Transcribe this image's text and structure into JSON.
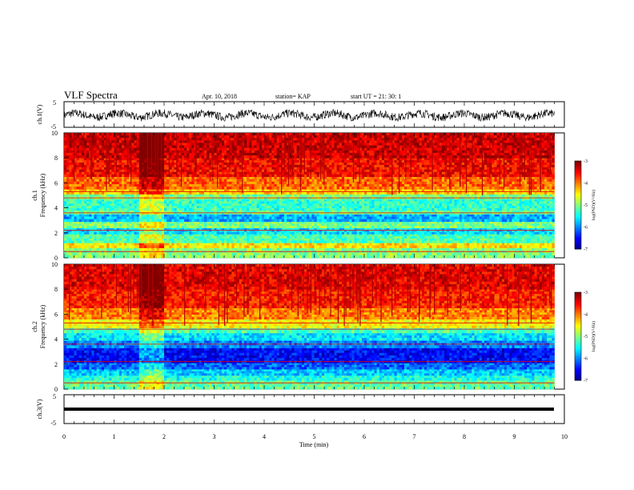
{
  "header": {
    "title": "VLF Spectra",
    "date": "Apr. 10, 2018",
    "station": "station= KAP",
    "start": "start  UT =   21: 30: 1"
  },
  "chart_data": [
    {
      "type": "line",
      "panel": "ch1-waveform",
      "ylabel": "ch.1(V)",
      "ylim": [
        -5,
        5
      ],
      "yticks": [
        "5",
        "-5"
      ],
      "xlim": [
        0,
        10
      ],
      "description_values": {
        "mean": -0.3,
        "range": [
          -2.5,
          1.5
        ]
      }
    },
    {
      "type": "heatmap",
      "panel": "ch1-spectrogram",
      "ylabel": "ch.1\nFrequency (kHz)",
      "ylim": [
        0,
        10
      ],
      "yticks": [
        "0",
        "2",
        "4",
        "6",
        "8",
        "10"
      ],
      "xlim": [
        0,
        9.8
      ],
      "colorbar": {
        "label": "log(PSD)(V²/Hz)",
        "range": [
          -7,
          -3
        ],
        "ticks": [
          "-3",
          "-4",
          "-5",
          "-6",
          "-7"
        ]
      },
      "bands": [
        {
          "from": 0.0,
          "to": 0.8,
          "value": -5.0
        },
        {
          "from": 0.8,
          "to": 1.2,
          "value": -4.4
        },
        {
          "from": 1.2,
          "to": 1.9,
          "value": -5.2
        },
        {
          "from": 1.9,
          "to": 2.4,
          "value": -5.6
        },
        {
          "from": 2.4,
          "to": 2.9,
          "value": -5.0
        },
        {
          "from": 2.9,
          "to": 3.5,
          "value": -5.8
        },
        {
          "from": 3.5,
          "to": 3.8,
          "value": -5.1
        },
        {
          "from": 3.8,
          "to": 4.7,
          "value": -5.3
        },
        {
          "from": 4.7,
          "to": 5.1,
          "value": -5.0
        },
        {
          "from": 5.1,
          "to": 5.5,
          "value": -4.3
        },
        {
          "from": 5.5,
          "to": 6.5,
          "value": -3.9
        },
        {
          "from": 6.5,
          "to": 8.0,
          "value": -3.5
        },
        {
          "from": 8.0,
          "to": 10.0,
          "value": -3.3
        }
      ],
      "event": {
        "t_start": 1.5,
        "t_end": 2.0
      }
    },
    {
      "type": "heatmap",
      "panel": "ch2-spectrogram",
      "ylabel": "ch.2\nFrequency (kHz)",
      "ylim": [
        0,
        10
      ],
      "yticks": [
        "0",
        "2",
        "4",
        "6",
        "8",
        "10"
      ],
      "xlim": [
        0,
        9.8
      ],
      "colorbar": {
        "label": "log(PSD)(V²/Hz)",
        "range": [
          -7,
          -3
        ],
        "ticks": [
          "-3",
          "-4",
          "-5",
          "-6",
          "-7"
        ]
      },
      "bands": [
        {
          "from": 0.0,
          "to": 0.7,
          "value": -5.1
        },
        {
          "from": 0.7,
          "to": 1.1,
          "value": -5.4
        },
        {
          "from": 1.1,
          "to": 1.6,
          "value": -5.7
        },
        {
          "from": 1.6,
          "to": 2.1,
          "value": -6.1
        },
        {
          "from": 2.1,
          "to": 3.3,
          "value": -6.5
        },
        {
          "from": 3.3,
          "to": 3.9,
          "value": -6.0
        },
        {
          "from": 3.9,
          "to": 4.5,
          "value": -5.6
        },
        {
          "from": 4.5,
          "to": 4.9,
          "value": -5.2
        },
        {
          "from": 4.9,
          "to": 5.6,
          "value": -4.5
        },
        {
          "from": 5.6,
          "to": 6.5,
          "value": -4.0
        },
        {
          "from": 6.5,
          "to": 8.0,
          "value": -3.6
        },
        {
          "from": 8.0,
          "to": 10.0,
          "value": -3.4
        }
      ],
      "event": {
        "t_start": 1.5,
        "t_end": 2.0
      }
    },
    {
      "type": "line",
      "panel": "ch3-waveform",
      "ylabel": "ch.3(V)",
      "ylim": [
        -5,
        5
      ],
      "yticks": [
        "5",
        "-5"
      ],
      "xlim": [
        0,
        10
      ],
      "constant_value": 0,
      "xlabel": "Time (min)",
      "xticks": [
        "0",
        "1",
        "2",
        "3",
        "4",
        "5",
        "6",
        "7",
        "8",
        "9",
        "10"
      ]
    }
  ]
}
